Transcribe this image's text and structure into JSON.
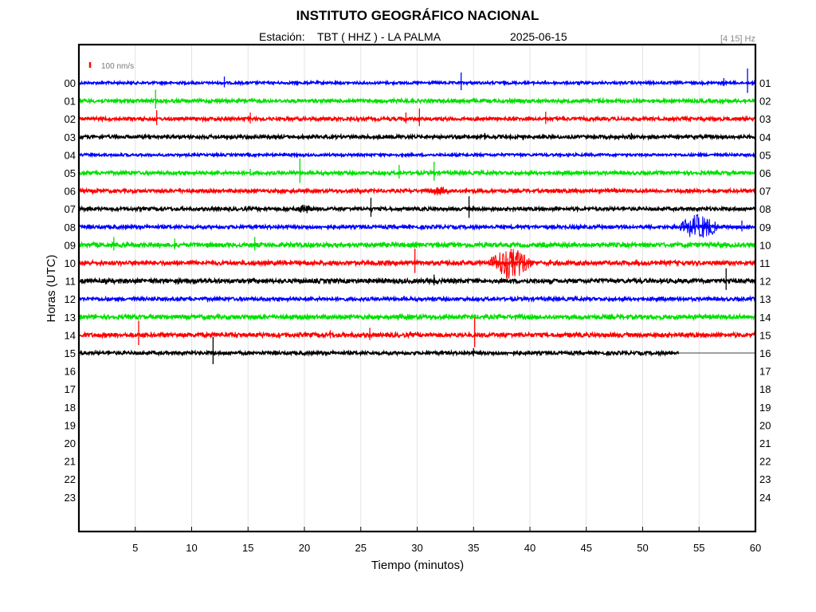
{
  "chart_data": {
    "type": "line",
    "title": "INSTITUTO GEOGRÁFICO NACIONAL",
    "subtitle_station_prefix": "Estación:",
    "station": "TBT ( HHZ ) - LA PALMA",
    "date": "2025-06-15",
    "filter_band": "[4 15] Hz",
    "filter_band_low": "4",
    "filter_band_high": "15",
    "scale_label": "100 nm/s",
    "xlabel": "Tiempo (minutos)",
    "ylabel": "Horas (UTC)",
    "xlim": [
      0,
      60
    ],
    "x_ticks": [
      5,
      10,
      15,
      20,
      25,
      30,
      35,
      40,
      45,
      50,
      55,
      60
    ],
    "left_hour_labels": [
      "00",
      "01",
      "02",
      "03",
      "04",
      "05",
      "06",
      "07",
      "08",
      "09",
      "10",
      "11",
      "12",
      "13",
      "14",
      "15",
      "16",
      "17",
      "18",
      "19",
      "20",
      "21",
      "22",
      "23"
    ],
    "right_hour_labels": [
      "01",
      "02",
      "03",
      "04",
      "05",
      "06",
      "07",
      "08",
      "09",
      "10",
      "11",
      "12",
      "13",
      "14",
      "15",
      "16",
      "17",
      "18",
      "19",
      "20",
      "21",
      "22",
      "23",
      "24"
    ],
    "grid": "vertical",
    "colors": [
      "#0000ff",
      "#00e000",
      "#ff0000",
      "#000000"
    ],
    "scale_color": "#ff0000",
    "series": [
      {
        "hour": "00",
        "color": "#0000ff",
        "end_min": 60,
        "noise": 1.5,
        "events": [
          {
            "t": 12.9,
            "amp": 8
          },
          {
            "t": 33.9,
            "amp": 13
          },
          {
            "t": 57.2,
            "amp": 6
          },
          {
            "t": 59.3,
            "amp": 18
          }
        ]
      },
      {
        "hour": "01",
        "color": "#00e000",
        "end_min": 60,
        "noise": 2,
        "events": [
          {
            "t": 6.8,
            "amp": 14
          },
          {
            "t": 46.5,
            "amp": 4
          }
        ]
      },
      {
        "hour": "02",
        "color": "#ff0000",
        "end_min": 60,
        "noise": 2,
        "events": [
          {
            "t": 6.9,
            "amp": 11
          },
          {
            "t": 15.2,
            "amp": 8
          },
          {
            "t": 29.0,
            "amp": 8
          },
          {
            "t": 30.2,
            "amp": 13
          },
          {
            "t": 41.4,
            "amp": 9
          }
        ]
      },
      {
        "hour": "03",
        "color": "#000000",
        "end_min": 60,
        "noise": 2,
        "events": [
          {
            "t": 36.0,
            "amp": 5
          },
          {
            "t": 49.0,
            "amp": 5
          }
        ]
      },
      {
        "hour": "04",
        "color": "#0000ff",
        "end_min": 60,
        "noise": 1.5,
        "events": []
      },
      {
        "hour": "05",
        "color": "#00e000",
        "end_min": 60,
        "noise": 2,
        "events": [
          {
            "t": 15.2,
            "amp": 5
          },
          {
            "t": 19.6,
            "amp": 18
          },
          {
            "t": 28.4,
            "amp": 10
          },
          {
            "t": 31.5,
            "amp": 14
          }
        ]
      },
      {
        "hour": "06",
        "color": "#ff0000",
        "end_min": 60,
        "noise": 2,
        "events": [
          {
            "t": 30.5,
            "amp": 6,
            "dur": 3.0
          },
          {
            "t": 41.0,
            "amp": 3,
            "dur": 4.0
          }
        ]
      },
      {
        "hour": "07",
        "color": "#000000",
        "end_min": 60,
        "noise": 2,
        "events": [
          {
            "t": 19.0,
            "amp": 6,
            "dur": 2.5
          },
          {
            "t": 25.9,
            "amp": 14
          },
          {
            "t": 34.6,
            "amp": 16
          }
        ]
      },
      {
        "hour": "08",
        "color": "#0000ff",
        "end_min": 60,
        "noise": 2,
        "events": [
          {
            "t": 53.0,
            "amp": 16,
            "dur": 4.0
          },
          {
            "t": 58.8,
            "amp": 8
          }
        ]
      },
      {
        "hour": "09",
        "color": "#00e000",
        "end_min": 60,
        "noise": 2.5,
        "events": [
          {
            "t": 3.1,
            "amp": 10
          },
          {
            "t": 8.5,
            "amp": 8
          },
          {
            "t": 15.6,
            "amp": 10
          }
        ]
      },
      {
        "hour": "10",
        "color": "#ff0000",
        "end_min": 60,
        "noise": 2.5,
        "events": [
          {
            "t": 29.8,
            "amp": 18
          },
          {
            "t": 36.0,
            "amp": 20,
            "dur": 4.5
          }
        ]
      },
      {
        "hour": "11",
        "color": "#000000",
        "end_min": 60,
        "noise": 2.5,
        "events": [
          {
            "t": 31.5,
            "amp": 8
          },
          {
            "t": 57.4,
            "amp": 16
          }
        ]
      },
      {
        "hour": "12",
        "color": "#0000ff",
        "end_min": 60,
        "noise": 2,
        "events": []
      },
      {
        "hour": "13",
        "color": "#00e000",
        "end_min": 60,
        "noise": 2.5,
        "events": []
      },
      {
        "hour": "14",
        "color": "#ff0000",
        "end_min": 60,
        "noise": 2.5,
        "events": [
          {
            "t": 5.3,
            "amp": 18
          },
          {
            "t": 22.3,
            "amp": 6
          },
          {
            "t": 25.8,
            "amp": 9
          },
          {
            "t": 35.1,
            "amp": 22
          }
        ]
      },
      {
        "hour": "15",
        "color": "#000000",
        "end_min": 53.2,
        "noise": 2,
        "events": [
          {
            "t": 11.9,
            "amp": 20
          },
          {
            "t": 35.0,
            "amp": 6
          }
        ]
      }
    ]
  }
}
